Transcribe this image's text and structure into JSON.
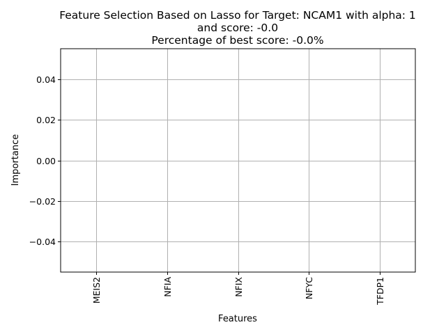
{
  "chart_data": {
    "type": "bar",
    "title_lines": [
      "Feature Selection Based on Lasso for Target: NCAM1 with alpha: 1",
      "and score: -0.0",
      "Percentage of best score: -0.0%"
    ],
    "categories": [
      "MEIS2",
      "NFIA",
      "NFIX",
      "NFYC",
      "TFDP1"
    ],
    "values": [
      0,
      0,
      0,
      0,
      0
    ],
    "xlabel": "Features",
    "ylabel": "Importance",
    "ylim": [
      -0.055,
      0.055
    ],
    "yticks": [
      -0.04,
      -0.02,
      0.0,
      0.02,
      0.04
    ],
    "ytick_labels": [
      "−0.04",
      "−0.02",
      "0.00",
      "0.02",
      "0.04"
    ],
    "grid": true,
    "colors": {
      "bar": "#1f77b4",
      "grid": "#b0b0b0",
      "axis": "#000000",
      "background": "#ffffff"
    }
  }
}
